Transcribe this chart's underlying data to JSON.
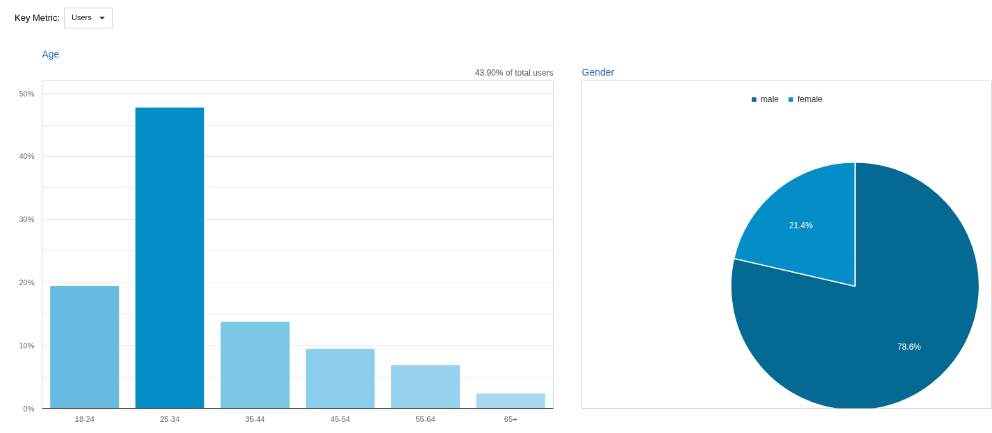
{
  "chart_data": [
    {
      "type": "bar",
      "title": "Age",
      "annotations": [
        "Key Metric:",
        "Users",
        "43.90% of total users"
      ],
      "categories": [
        "18-24",
        "25-34",
        "35-44",
        "45-54",
        "55-64",
        "65+"
      ],
      "values": [
        19.4,
        47.7,
        13.7,
        9.4,
        6.8,
        2.3
      ],
      "colors": [
        "#68bbe0",
        "#058dc7",
        "#7cc6e6",
        "#8bcdea",
        "#98d3ee",
        "#a4d9f0"
      ],
      "ylim": [
        0,
        52
      ],
      "yticks": [
        {
          "value": 0,
          "label": "0%"
        },
        {
          "value": 5,
          "label": null
        },
        {
          "value": 10,
          "label": "10%"
        },
        {
          "value": 15,
          "label": null
        },
        {
          "value": 20,
          "label": "20%"
        },
        {
          "value": 25,
          "label": null
        },
        {
          "value": 30,
          "label": "30%"
        },
        {
          "value": 35,
          "label": null
        },
        {
          "value": 40,
          "label": "40%"
        },
        {
          "value": 45,
          "label": null
        },
        {
          "value": 50,
          "label": "50%"
        }
      ],
      "grid": "y"
    },
    {
      "type": "pie",
      "title": "Gender",
      "categories": [
        "male",
        "female"
      ],
      "values": [
        78.6,
        21.4
      ],
      "colors": [
        "#056a93",
        "#058dc7"
      ],
      "value_labels": [
        "78.6%",
        "21.4%"
      ],
      "legend": "top"
    }
  ]
}
